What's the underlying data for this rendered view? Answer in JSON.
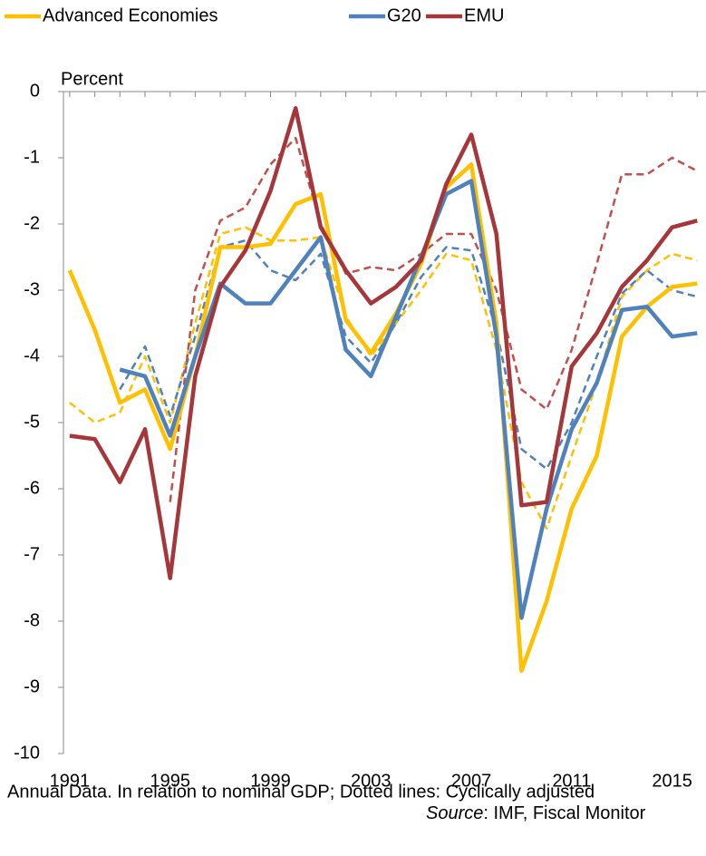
{
  "chart_data": {
    "type": "line",
    "y_label": "Percent",
    "x": [
      1991,
      1992,
      1993,
      1994,
      1995,
      1996,
      1997,
      1998,
      1999,
      2000,
      2001,
      2002,
      2003,
      2004,
      2005,
      2006,
      2007,
      2008,
      2009,
      2010,
      2011,
      2012,
      2013,
      2014,
      2015,
      2016
    ],
    "xlim": [
      1990.75,
      2016.35
    ],
    "xticks": [
      1991,
      1995,
      1999,
      2003,
      2007,
      2011,
      2015
    ],
    "ylim": [
      -10,
      0
    ],
    "yticks": [
      0,
      -1,
      -2,
      -3,
      -4,
      -5,
      -6,
      -7,
      -8,
      -9,
      -10
    ],
    "legend": "top",
    "series": [
      {
        "name": "Advanced Economies",
        "color": "#ffc000",
        "dashed": false,
        "values": [
          -2.7,
          -3.6,
          -4.7,
          -4.5,
          -5.4,
          -4.0,
          -2.35,
          -2.35,
          -2.3,
          -1.7,
          -1.55,
          -3.45,
          -3.95,
          -3.35,
          -2.6,
          -1.45,
          -1.1,
          -3.5,
          -8.75,
          -7.7,
          -6.3,
          -5.5,
          -3.7,
          -3.25,
          -2.95,
          -2.9
        ]
      },
      {
        "name": "G20",
        "color": "#4f81bd",
        "dashed": false,
        "values": [
          null,
          null,
          -4.2,
          -4.3,
          -5.2,
          -4.0,
          -2.9,
          -3.2,
          -3.2,
          -2.7,
          -2.2,
          -3.9,
          -4.3,
          -3.4,
          -2.5,
          -1.55,
          -1.35,
          -3.7,
          -7.95,
          -6.3,
          -5.1,
          -4.4,
          -3.3,
          -3.25,
          -3.7,
          -3.65
        ]
      },
      {
        "name": "EMU",
        "color": "#a5373a",
        "dashed": false,
        "values": [
          -5.2,
          -5.25,
          -5.9,
          -5.1,
          -7.35,
          -4.3,
          -2.95,
          -2.4,
          -1.5,
          -0.25,
          -2.05,
          -2.7,
          -3.2,
          -2.95,
          -2.55,
          -1.4,
          -0.65,
          -2.15,
          -6.25,
          -6.2,
          -4.15,
          -3.65,
          -2.95,
          -2.55,
          -2.05,
          -1.95
        ]
      },
      {
        "color": "#ffc000",
        "dashed": true,
        "values": [
          -4.7,
          -5.0,
          -4.85,
          -4.0,
          -5.0,
          -3.5,
          -2.15,
          -2.05,
          -2.25,
          -2.25,
          -2.2,
          -3.4,
          -4.0,
          -3.5,
          -3.0,
          -2.45,
          -2.55,
          -3.9,
          -5.9,
          -6.6,
          -5.5,
          -4.4,
          -3.1,
          -2.7,
          -2.45,
          -2.55
        ]
      },
      {
        "color": "#4f81bd",
        "dashed": true,
        "values": [
          null,
          null,
          -4.5,
          -3.85,
          -4.9,
          -3.7,
          -2.35,
          -2.25,
          -2.7,
          -2.85,
          -2.45,
          -3.7,
          -4.1,
          -3.5,
          -2.8,
          -2.35,
          -2.4,
          -3.6,
          -5.4,
          -5.7,
          -5.0,
          -4.0,
          -3.05,
          -2.7,
          -3.0,
          -3.1
        ]
      },
      {
        "color": "#c0504d",
        "dashed": true,
        "values": [
          null,
          null,
          null,
          null,
          -6.2,
          -3.0,
          -1.95,
          -1.75,
          -1.1,
          -0.7,
          -2.0,
          -2.75,
          -2.65,
          -2.7,
          -2.45,
          -2.15,
          -2.15,
          -3.0,
          -4.5,
          -4.8,
          -3.9,
          -2.6,
          -1.25,
          -1.25,
          -1.0,
          -1.2
        ]
      }
    ],
    "note": "Annual Data. In relation to nominal GDP; Dotted lines: Cyclically adjusted",
    "source_label": "Source",
    "source_text": ": IMF, Fiscal Monitor"
  }
}
